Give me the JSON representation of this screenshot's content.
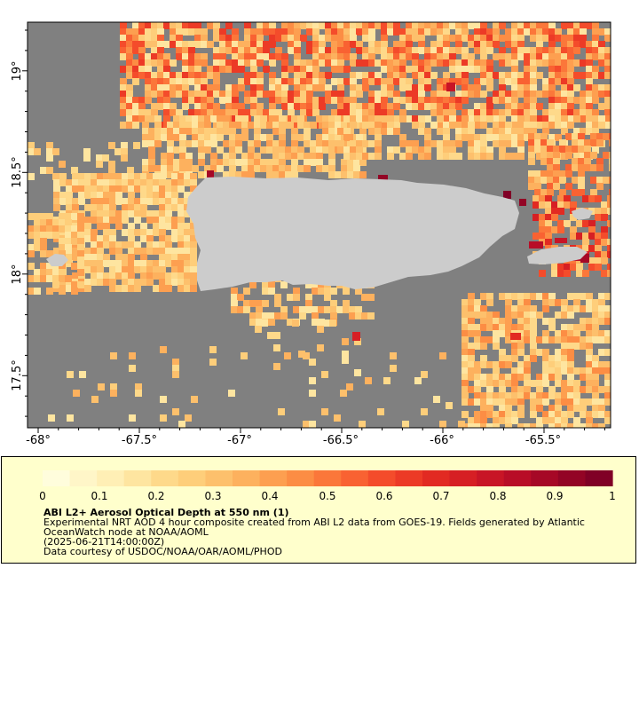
{
  "map": {
    "x_ticks": [
      "-68°",
      "-67.5°",
      "-67°",
      "-66.5°",
      "-66°",
      "-65.5°"
    ],
    "y_ticks": [
      "19°",
      "18.5°",
      "18°",
      "17.5°"
    ],
    "colors": {
      "no_data": "#808080",
      "land": "#cccccc",
      "frame": "#000000"
    }
  },
  "colorbar": {
    "labels": [
      "0",
      "0.1",
      "0.2",
      "0.3",
      "0.4",
      "0.5",
      "0.6",
      "0.7",
      "0.8",
      "0.9",
      "1"
    ],
    "colors": [
      "#fffddc",
      "#fff6c8",
      "#ffefb5",
      "#fee5a0",
      "#fed98a",
      "#fece7a",
      "#fdc06c",
      "#fdb15e",
      "#fd9f50",
      "#fc8d44",
      "#fb773a",
      "#f96232",
      "#f44c2b",
      "#ec3a26",
      "#e22a22",
      "#d61f24",
      "#c81526",
      "#b80d27",
      "#a60826",
      "#930425",
      "#800026"
    ]
  },
  "legend": {
    "title": "ABI L2+ Aerosol Optical Depth at 550 nm (1)",
    "line1": "Experimental NRT AOD 4 hour composite created from ABI L2 data from GOES-19. Fields generated by Atlantic",
    "line2": "OceanWatch node at NOAA/AOML",
    "line3": "(2025-06-21T14:00:00Z)",
    "line4": "Data courtesy of USDOC/NOAA/OAR/AOML/PHOD"
  }
}
